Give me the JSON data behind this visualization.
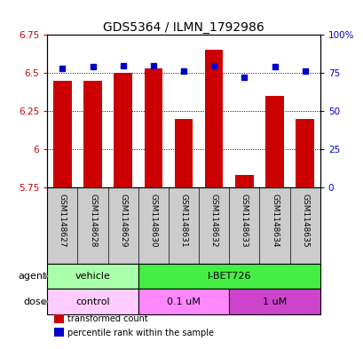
{
  "title": "GDS5364 / ILMN_1792986",
  "samples": [
    "GSM1148627",
    "GSM1148628",
    "GSM1148629",
    "GSM1148630",
    "GSM1148631",
    "GSM1148632",
    "GSM1148633",
    "GSM1148634",
    "GSM1148635"
  ],
  "red_values": [
    6.45,
    6.45,
    6.5,
    6.53,
    6.2,
    6.65,
    5.83,
    6.35,
    6.2
  ],
  "blue_values": [
    78,
    79,
    80,
    80,
    76,
    80,
    72,
    79,
    76
  ],
  "ylim_left": [
    5.75,
    6.75
  ],
  "ylim_right": [
    0,
    100
  ],
  "yticks_left": [
    5.75,
    6.0,
    6.25,
    6.5,
    6.75
  ],
  "yticks_right": [
    0,
    25,
    50,
    75,
    100
  ],
  "ytick_labels_left": [
    "5.75",
    "6",
    "6.25",
    "6.5",
    "6.75"
  ],
  "ytick_labels_right": [
    "0",
    "25",
    "50",
    "75",
    "100%"
  ],
  "red_color": "#cc0000",
  "blue_color": "#0000cc",
  "bar_width": 0.6,
  "agent_groups": [
    {
      "label": "vehicle",
      "start": 0,
      "end": 3,
      "color": "#aaffaa"
    },
    {
      "label": "I-BET726",
      "start": 3,
      "end": 9,
      "color": "#44ee44"
    }
  ],
  "dose_groups": [
    {
      "label": "control",
      "start": 0,
      "end": 3,
      "color": "#ffccff"
    },
    {
      "label": "0.1 uM",
      "start": 3,
      "end": 6,
      "color": "#ff88ff"
    },
    {
      "label": "1 uM",
      "start": 6,
      "end": 9,
      "color": "#cc44cc"
    }
  ],
  "legend_red": "transformed count",
  "legend_blue": "percentile rank within the sample",
  "label_bg_color": "#cccccc",
  "plot_bg": "#ffffff"
}
